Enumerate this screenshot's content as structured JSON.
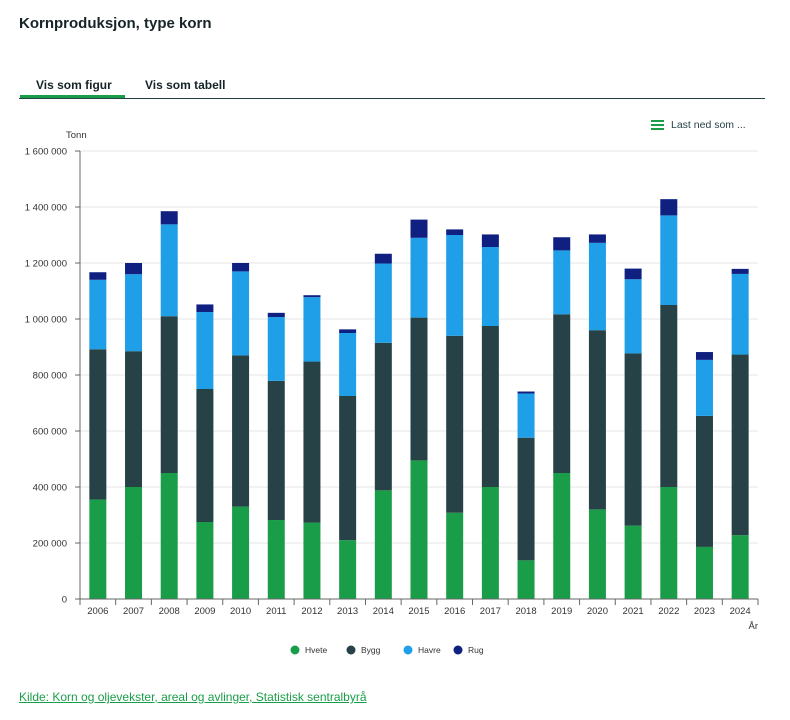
{
  "title": "Kornproduksjon, type korn",
  "tabs": [
    {
      "label": "Vis som figur",
      "active": true
    },
    {
      "label": "Vis som tabell",
      "active": false
    }
  ],
  "download_label": "Last ned som ...",
  "source_text": "Kilde: Korn og oljevekster, areal og avlinger, Statistisk sentralbyrå",
  "colors": {
    "Hvete": "#1a9d49",
    "Bygg": "#274247",
    "Havre": "#1f9fe8",
    "Rug": "#0f2080",
    "grid": "#e6e6e6",
    "axis": "#666666"
  },
  "chart_data": {
    "type": "stacked-bar",
    "title": "Kornproduksjon, type korn",
    "ylabel": "Tonn",
    "xlabel": "År",
    "ylim": [
      0,
      1600000
    ],
    "yticks": [
      {
        "value": 0,
        "label": "0"
      },
      {
        "value": 200000,
        "label": "200 000"
      },
      {
        "value": 400000,
        "label": "400 000"
      },
      {
        "value": 600000,
        "label": "600 000"
      },
      {
        "value": 800000,
        "label": "800 000"
      },
      {
        "value": 1000000,
        "label": "1 000 000"
      },
      {
        "value": 1200000,
        "label": "1 200 000"
      },
      {
        "value": 1400000,
        "label": "1 400 000"
      },
      {
        "value": 1600000,
        "label": "1 600 000"
      }
    ],
    "categories": [
      "2006",
      "2007",
      "2008",
      "2009",
      "2010",
      "2011",
      "2012",
      "2013",
      "2014",
      "2015",
      "2016",
      "2017",
      "2018",
      "2019",
      "2020",
      "2021",
      "2022",
      "2023",
      "2024"
    ],
    "legend_position": "bottom",
    "series": [
      {
        "name": "Hvete",
        "values": [
          355000,
          400000,
          450000,
          275000,
          330000,
          282000,
          273000,
          210000,
          388000,
          495000,
          308000,
          400000,
          138000,
          450000,
          320000,
          262000,
          400000,
          186000,
          228000
        ]
      },
      {
        "name": "Bygg",
        "values": [
          537000,
          485000,
          560000,
          475000,
          540000,
          497000,
          575000,
          515000,
          527000,
          510000,
          632000,
          575000,
          438000,
          567000,
          640000,
          615000,
          650000,
          468000,
          645000
        ]
      },
      {
        "name": "Havre",
        "values": [
          248000,
          275000,
          328000,
          275000,
          300000,
          228000,
          230000,
          225000,
          283000,
          285000,
          360000,
          282000,
          158000,
          228000,
          312000,
          265000,
          320000,
          200000,
          288000
        ]
      },
      {
        "name": "Rug",
        "values": [
          27000,
          40000,
          47000,
          27000,
          30000,
          15000,
          7000,
          13000,
          35000,
          65000,
          20000,
          45000,
          7000,
          47000,
          30000,
          38000,
          58000,
          28000,
          18000
        ]
      }
    ]
  }
}
